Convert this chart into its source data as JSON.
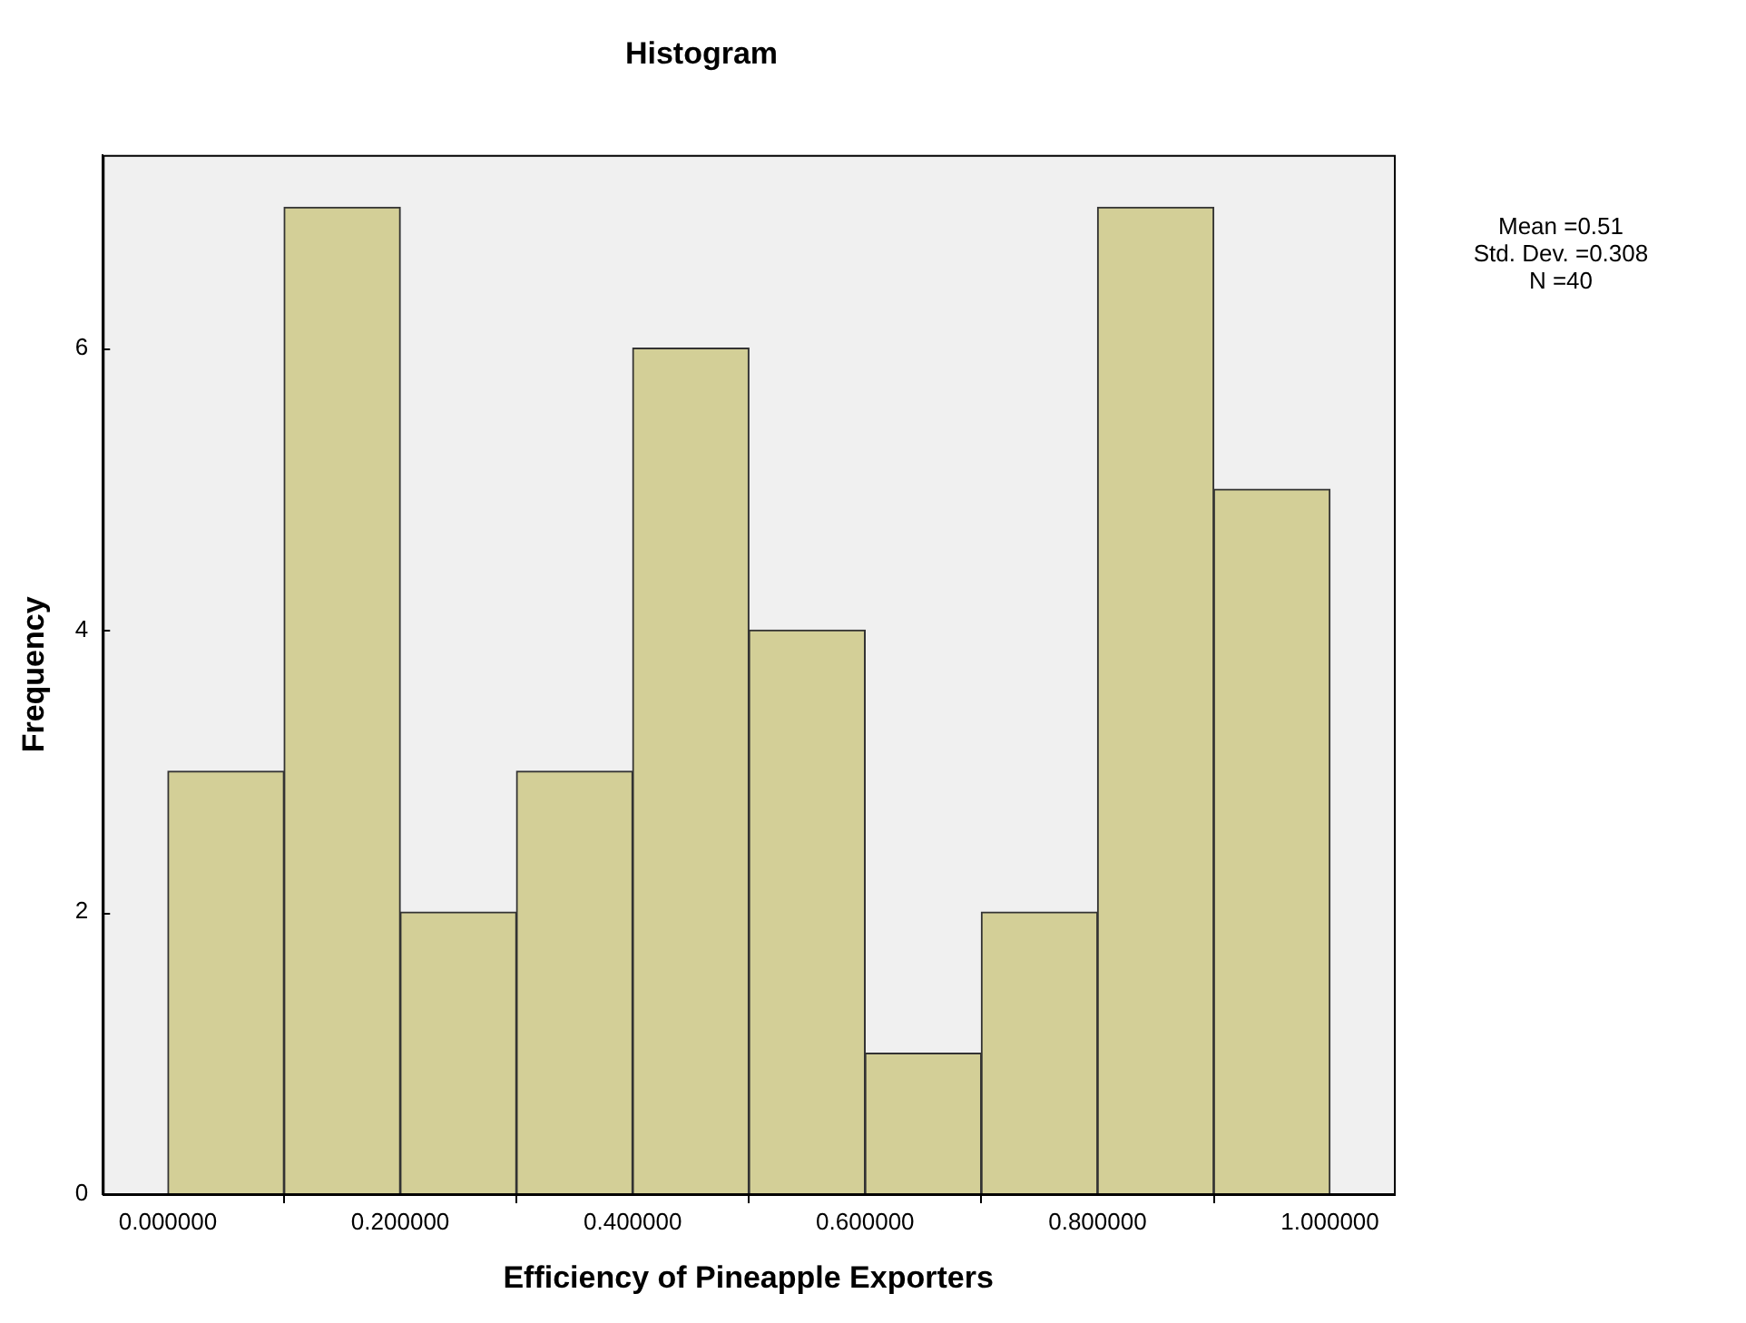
{
  "chart_data": {
    "type": "histogram",
    "title": "Histogram",
    "xlabel": "Efficiency of Pineapple Exporters",
    "ylabel": "Frequency",
    "bins": [
      0,
      0.1,
      0.2,
      0.3,
      0.4,
      0.5,
      0.6,
      0.7,
      0.8,
      0.9,
      1.0
    ],
    "values": [
      3,
      7,
      2,
      3,
      6,
      4,
      1,
      2,
      7,
      5
    ],
    "color": "#d3cf97",
    "xlim": [
      -0.056,
      1.055
    ],
    "xticks": [
      {
        "value": 0,
        "label": "0.000000"
      },
      {
        "value": 0.2,
        "label": "0.200000"
      },
      {
        "value": 0.4,
        "label": "0.400000"
      },
      {
        "value": 0.6,
        "label": "0.600000"
      },
      {
        "value": 0.8,
        "label": "0.800000"
      },
      {
        "value": 1.0,
        "label": "1.000000"
      }
    ],
    "ylim": [
      0,
      7.37
    ],
    "yticks": [
      0,
      2,
      4,
      6
    ],
    "grid": false,
    "legend": false,
    "annotations": [
      "Mean =0.51",
      "Std. Dev. =0.308",
      "N =40"
    ]
  }
}
